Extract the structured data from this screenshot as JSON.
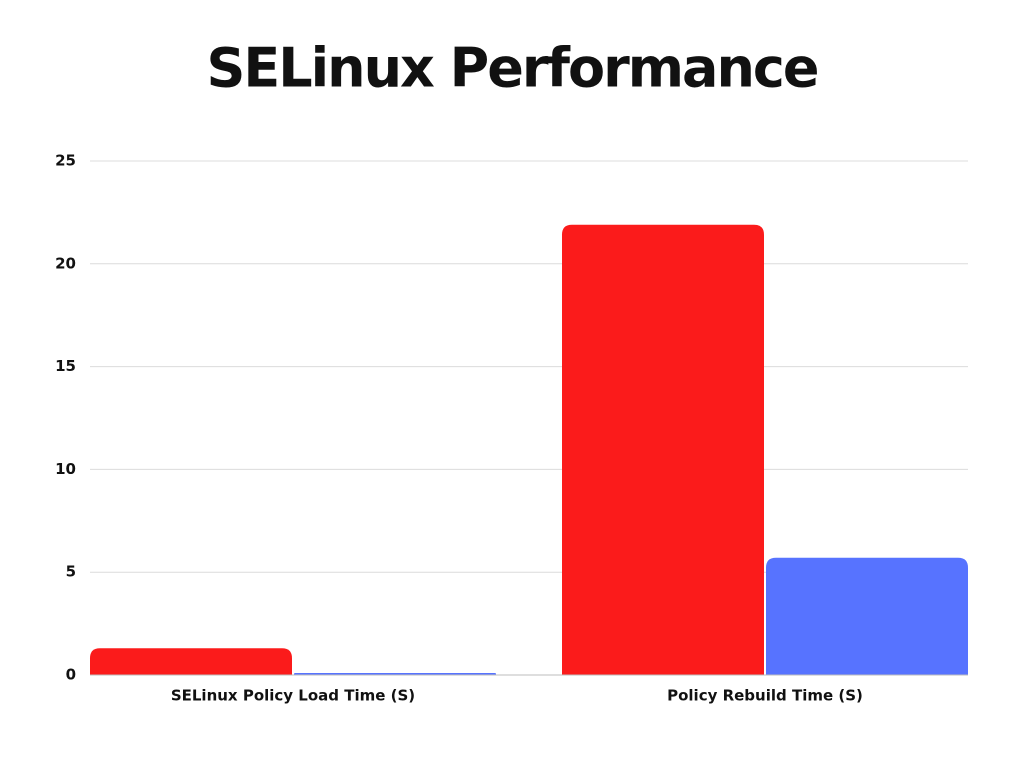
{
  "chart_data": {
    "type": "bar",
    "title": "SELinux Performance",
    "categories": [
      "SELinux Policy Load Time (S)",
      "Policy Rebuild Time (S)"
    ],
    "series": [
      {
        "color": "#fb1b1b",
        "values": [
          1.3,
          21.9
        ]
      },
      {
        "color": "#5773ff",
        "values": [
          0.1,
          5.7
        ]
      }
    ],
    "ylim": [
      0,
      25
    ],
    "yticks": [
      0,
      5,
      10,
      15,
      20,
      25
    ],
    "grid": true
  }
}
